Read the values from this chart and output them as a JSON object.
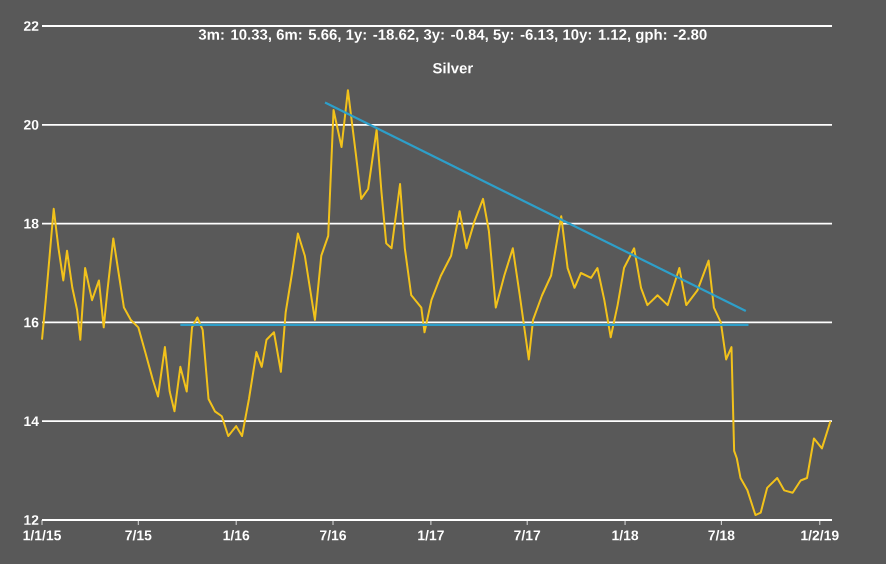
{
  "chart_data": {
    "type": "line",
    "title": "3m: 10.33, 6m: 5.66, 1y: -18.62, 3y: -0.84, 5y: -6.13, 10y: 1.12, gph: -2.80",
    "subtitle": "Silver",
    "xlim": [
      "2015-01-01",
      "2019-01-25"
    ],
    "ylim": [
      12,
      22
    ],
    "yticks": [
      12,
      14,
      16,
      18,
      20,
      22
    ],
    "xticks": [
      {
        "value": "2015-01-01",
        "label": "1/1/15"
      },
      {
        "value": "2015-07-01",
        "label": "7/15"
      },
      {
        "value": "2016-01-01",
        "label": "1/16"
      },
      {
        "value": "2016-07-01",
        "label": "7/16"
      },
      {
        "value": "2017-01-01",
        "label": "1/17"
      },
      {
        "value": "2017-07-01",
        "label": "7/17"
      },
      {
        "value": "2018-01-01",
        "label": "1/18"
      },
      {
        "value": "2018-07-01",
        "label": "7/18"
      },
      {
        "value": "2019-01-02",
        "label": "1/2/19"
      }
    ],
    "grid": "y",
    "legend": false,
    "marker": "none",
    "series": [
      {
        "color": "#f2c21b",
        "x": [
          "2015-01-01",
          "2015-01-08",
          "2015-01-23",
          "2015-02-01",
          "2015-02-10",
          "2015-02-17",
          "2015-02-27",
          "2015-03-08",
          "2015-03-14",
          "2015-03-23",
          "2015-04-05",
          "2015-04-18",
          "2015-04-27",
          "2015-05-04",
          "2015-05-15",
          "2015-05-25",
          "2015-06-04",
          "2015-06-17",
          "2015-07-01",
          "2015-07-14",
          "2015-07-28",
          "2015-08-07",
          "2015-08-20",
          "2015-08-29",
          "2015-09-07",
          "2015-09-18",
          "2015-09-30",
          "2015-10-10",
          "2015-10-20",
          "2015-10-30",
          "2015-11-10",
          "2015-11-22",
          "2015-12-05",
          "2015-12-17",
          "2016-01-01",
          "2016-01-12",
          "2016-01-25",
          "2016-02-08",
          "2016-02-18",
          "2016-02-27",
          "2016-03-12",
          "2016-03-25",
          "2016-04-03",
          "2016-04-15",
          "2016-04-26",
          "2016-05-09",
          "2016-05-28",
          "2016-06-09",
          "2016-06-22",
          "2016-07-02",
          "2016-07-17",
          "2016-07-29",
          "2016-08-13",
          "2016-08-23",
          "2016-09-05",
          "2016-09-21",
          "2016-09-30",
          "2016-10-09",
          "2016-10-19",
          "2016-11-04",
          "2016-11-13",
          "2016-11-25",
          "2016-12-14",
          "2016-12-20",
          "2017-01-02",
          "2017-01-20",
          "2017-02-08",
          "2017-02-24",
          "2017-03-09",
          "2017-03-24",
          "2017-04-09",
          "2017-04-20",
          "2017-05-03",
          "2017-05-19",
          "2017-06-04",
          "2017-06-17",
          "2017-07-04",
          "2017-07-12",
          "2017-07-29",
          "2017-08-15",
          "2017-09-03",
          "2017-09-15",
          "2017-09-28",
          "2017-10-10",
          "2017-10-29",
          "2017-11-10",
          "2017-11-23",
          "2017-12-05",
          "2017-12-18",
          "2017-12-30",
          "2018-01-18",
          "2018-01-31",
          "2018-02-12",
          "2018-03-03",
          "2018-03-22",
          "2018-04-13",
          "2018-04-26",
          "2018-05-17",
          "2018-06-07",
          "2018-06-17",
          "2018-06-30",
          "2018-07-10",
          "2018-07-20",
          "2018-07-25",
          "2018-07-30",
          "2018-08-06",
          "2018-08-19",
          "2018-09-03",
          "2018-09-13",
          "2018-09-25",
          "2018-10-14",
          "2018-10-27",
          "2018-11-12",
          "2018-11-27",
          "2018-12-09",
          "2018-12-22",
          "2019-01-06",
          "2019-01-22"
        ],
        "values": [
          15.65,
          16.45,
          18.3,
          17.5,
          16.85,
          17.45,
          16.7,
          16.25,
          15.65,
          17.1,
          16.45,
          16.85,
          15.9,
          16.65,
          17.7,
          17.0,
          16.3,
          16.05,
          15.9,
          15.4,
          14.85,
          14.5,
          15.5,
          14.6,
          14.2,
          15.1,
          14.6,
          15.9,
          16.1,
          15.85,
          14.45,
          14.2,
          14.1,
          13.7,
          13.9,
          13.7,
          14.45,
          15.4,
          15.1,
          15.65,
          15.8,
          15.0,
          16.2,
          17.0,
          17.8,
          17.35,
          16.05,
          17.35,
          17.75,
          20.3,
          19.55,
          20.7,
          19.4,
          18.5,
          18.7,
          19.9,
          18.65,
          17.6,
          17.5,
          18.8,
          17.5,
          16.55,
          16.3,
          15.8,
          16.45,
          16.95,
          17.35,
          18.25,
          17.5,
          18.05,
          18.5,
          17.85,
          16.3,
          16.95,
          17.5,
          16.55,
          15.25,
          16.05,
          16.55,
          16.95,
          18.15,
          17.1,
          16.7,
          17.0,
          16.9,
          17.1,
          16.45,
          15.7,
          16.35,
          17.1,
          17.5,
          16.7,
          16.35,
          16.55,
          16.35,
          17.1,
          16.35,
          16.65,
          17.25,
          16.3,
          16.0,
          15.25,
          15.5,
          13.4,
          13.25,
          12.85,
          12.6,
          12.1,
          12.15,
          12.65,
          12.85,
          12.6,
          12.55,
          12.8,
          12.85,
          13.65,
          13.45,
          14.0
        ]
      },
      {
        "color": "#2e9fc9",
        "x": [
          "2015-09-18",
          "2018-08-21"
        ],
        "values": [
          15.95,
          15.95
        ]
      },
      {
        "color": "#2e9fc9",
        "x": [
          "2016-06-16",
          "2018-08-16"
        ],
        "values": [
          20.45,
          16.23
        ]
      }
    ]
  }
}
